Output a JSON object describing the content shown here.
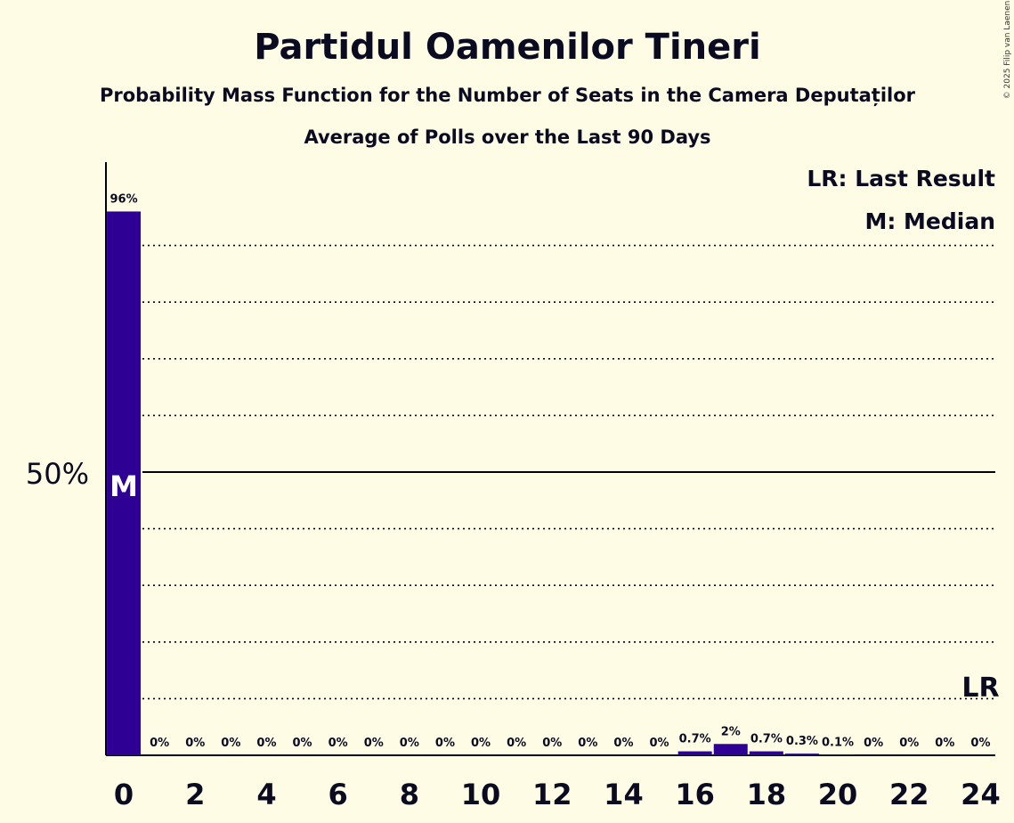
{
  "chart_data": {
    "type": "bar",
    "title": "Partidul Oamenilor Tineri",
    "subtitle": "Probability Mass Function for the Number of Seats in the Camera Deputaților",
    "subtitle2": "Average of Polls over the Last 90 Days",
    "copyright": "© 2025 Filip van Laenen",
    "legend": [
      "LR: Last Result",
      "M: Median"
    ],
    "legend_position": "top-right",
    "ytick_label": "50%",
    "ylim": [
      0,
      100
    ],
    "categories": [
      0,
      1,
      2,
      3,
      4,
      5,
      6,
      7,
      8,
      9,
      10,
      11,
      12,
      13,
      14,
      15,
      16,
      17,
      18,
      19,
      20,
      21,
      22,
      23,
      24
    ],
    "xtick_labels": [
      "0",
      "2",
      "4",
      "6",
      "8",
      "10",
      "12",
      "14",
      "16",
      "18",
      "20",
      "22",
      "24"
    ],
    "values": [
      96,
      0,
      0,
      0,
      0,
      0,
      0,
      0,
      0,
      0,
      0,
      0,
      0,
      0,
      0,
      0,
      0.7,
      2,
      0.7,
      0.3,
      0.1,
      0,
      0,
      0,
      0
    ],
    "value_labels": [
      "96%",
      "0%",
      "0%",
      "0%",
      "0%",
      "0%",
      "0%",
      "0%",
      "0%",
      "0%",
      "0%",
      "0%",
      "0%",
      "0%",
      "0%",
      "0%",
      "0.7%",
      "2%",
      "0.7%",
      "0.3%",
      "0.1%",
      "0%",
      "0%",
      "0%",
      "0%"
    ],
    "median_seat": 0,
    "median_marker": "M",
    "last_result_seat": 24,
    "last_result_marker": "LR",
    "grid": true,
    "colors": {
      "bar": "#2E0094",
      "background": "#FFFCE6",
      "text": "#000000"
    }
  }
}
